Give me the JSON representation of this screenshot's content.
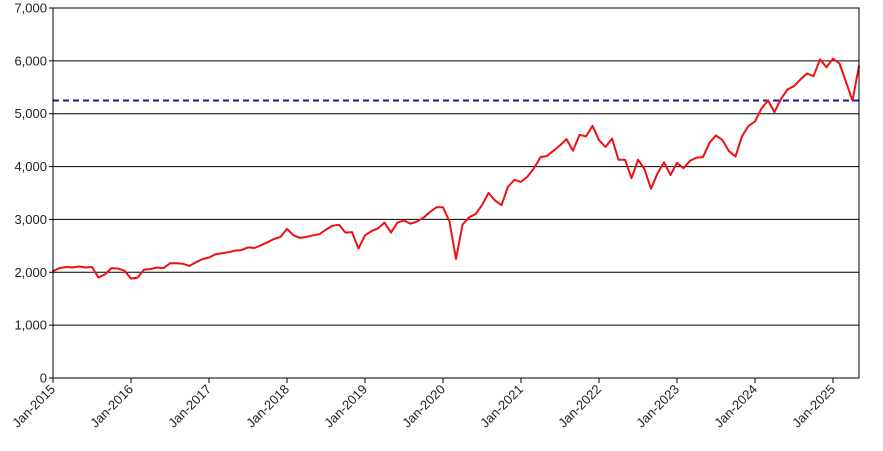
{
  "chart_data": {
    "type": "line",
    "title": "",
    "xlabel": "",
    "ylabel": "",
    "ylim": [
      0,
      7000
    ],
    "yticks": [
      0,
      1000,
      2000,
      3000,
      4000,
      5000,
      6000,
      7000
    ],
    "ytick_labels": [
      "0",
      "1,000",
      "2,000",
      "3,000",
      "4,000",
      "5,000",
      "6,000",
      "7,000"
    ],
    "xlim": [
      "2015-01",
      "2025-05"
    ],
    "xticks": [
      "2015-01",
      "2016-01",
      "2017-01",
      "2018-01",
      "2019-01",
      "2020-01",
      "2021-01",
      "2022-01",
      "2023-01",
      "2024-01",
      "2025-01"
    ],
    "xtick_labels": [
      "Jan-2015",
      "Jan-2016",
      "Jan-2017",
      "Jan-2018",
      "Jan-2019",
      "Jan-2020",
      "Jan-2021",
      "Jan-2022",
      "Jan-2023",
      "Jan-2024",
      "Jan-2025"
    ],
    "grid": "horizontal",
    "legend": "none",
    "reference_line": {
      "y": 5250,
      "style": "dashed",
      "color": "#1a1a8c"
    },
    "series": [
      {
        "color": "#ee1111",
        "x": [
          "2015-01",
          "2015-02",
          "2015-03",
          "2015-04",
          "2015-05",
          "2015-06",
          "2015-07",
          "2015-08",
          "2015-09",
          "2015-10",
          "2015-11",
          "2015-12",
          "2016-01",
          "2016-02",
          "2016-03",
          "2016-04",
          "2016-05",
          "2016-06",
          "2016-07",
          "2016-08",
          "2016-09",
          "2016-10",
          "2016-11",
          "2016-12",
          "2017-01",
          "2017-02",
          "2017-03",
          "2017-04",
          "2017-05",
          "2017-06",
          "2017-07",
          "2017-08",
          "2017-09",
          "2017-10",
          "2017-11",
          "2017-12",
          "2018-01",
          "2018-02",
          "2018-03",
          "2018-04",
          "2018-05",
          "2018-06",
          "2018-07",
          "2018-08",
          "2018-09",
          "2018-10",
          "2018-11",
          "2018-12",
          "2019-01",
          "2019-02",
          "2019-03",
          "2019-04",
          "2019-05",
          "2019-06",
          "2019-07",
          "2019-08",
          "2019-09",
          "2019-10",
          "2019-11",
          "2019-12",
          "2020-01",
          "2020-02",
          "2020-03",
          "2020-04",
          "2020-05",
          "2020-06",
          "2020-07",
          "2020-08",
          "2020-09",
          "2020-10",
          "2020-11",
          "2020-12",
          "2021-01",
          "2021-02",
          "2021-03",
          "2021-04",
          "2021-05",
          "2021-06",
          "2021-07",
          "2021-08",
          "2021-09",
          "2021-10",
          "2021-11",
          "2021-12",
          "2022-01",
          "2022-02",
          "2022-03",
          "2022-04",
          "2022-05",
          "2022-06",
          "2022-07",
          "2022-08",
          "2022-09",
          "2022-10",
          "2022-11",
          "2022-12",
          "2023-01",
          "2023-02",
          "2023-03",
          "2023-04",
          "2023-05",
          "2023-06",
          "2023-07",
          "2023-08",
          "2023-09",
          "2023-10",
          "2023-11",
          "2023-12",
          "2024-01",
          "2024-02",
          "2024-03",
          "2024-04",
          "2024-05",
          "2024-06",
          "2024-07",
          "2024-08",
          "2024-09",
          "2024-10",
          "2024-11",
          "2024-12",
          "2025-01",
          "2025-02",
          "2025-03",
          "2025-04",
          "2025-05"
        ],
        "values": [
          2020,
          2080,
          2100,
          2090,
          2110,
          2090,
          2100,
          1900,
          1960,
          2080,
          2070,
          2030,
          1880,
          1900,
          2050,
          2060,
          2090,
          2080,
          2170,
          2170,
          2160,
          2120,
          2190,
          2250,
          2280,
          2340,
          2360,
          2380,
          2410,
          2420,
          2470,
          2460,
          2510,
          2570,
          2630,
          2670,
          2820,
          2700,
          2650,
          2670,
          2700,
          2720,
          2810,
          2880,
          2900,
          2750,
          2760,
          2450,
          2700,
          2780,
          2830,
          2940,
          2750,
          2940,
          2980,
          2920,
          2960,
          3030,
          3140,
          3230,
          3230,
          2960,
          2250,
          2900,
          3040,
          3100,
          3270,
          3500,
          3360,
          3270,
          3620,
          3750,
          3710,
          3810,
          3970,
          4180,
          4200,
          4300,
          4400,
          4520,
          4300,
          4600,
          4570,
          4770,
          4500,
          4370,
          4530,
          4130,
          4130,
          3780,
          4130,
          3950,
          3580,
          3870,
          4080,
          3840,
          4070,
          3970,
          4110,
          4170,
          4180,
          4450,
          4590,
          4500,
          4290,
          4190,
          4570,
          4770,
          4850,
          5100,
          5250,
          5030,
          5280,
          5460,
          5520,
          5650,
          5760,
          5710,
          6030,
          5880,
          6040,
          5950,
          5600,
          5250,
          5900
        ]
      }
    ]
  }
}
